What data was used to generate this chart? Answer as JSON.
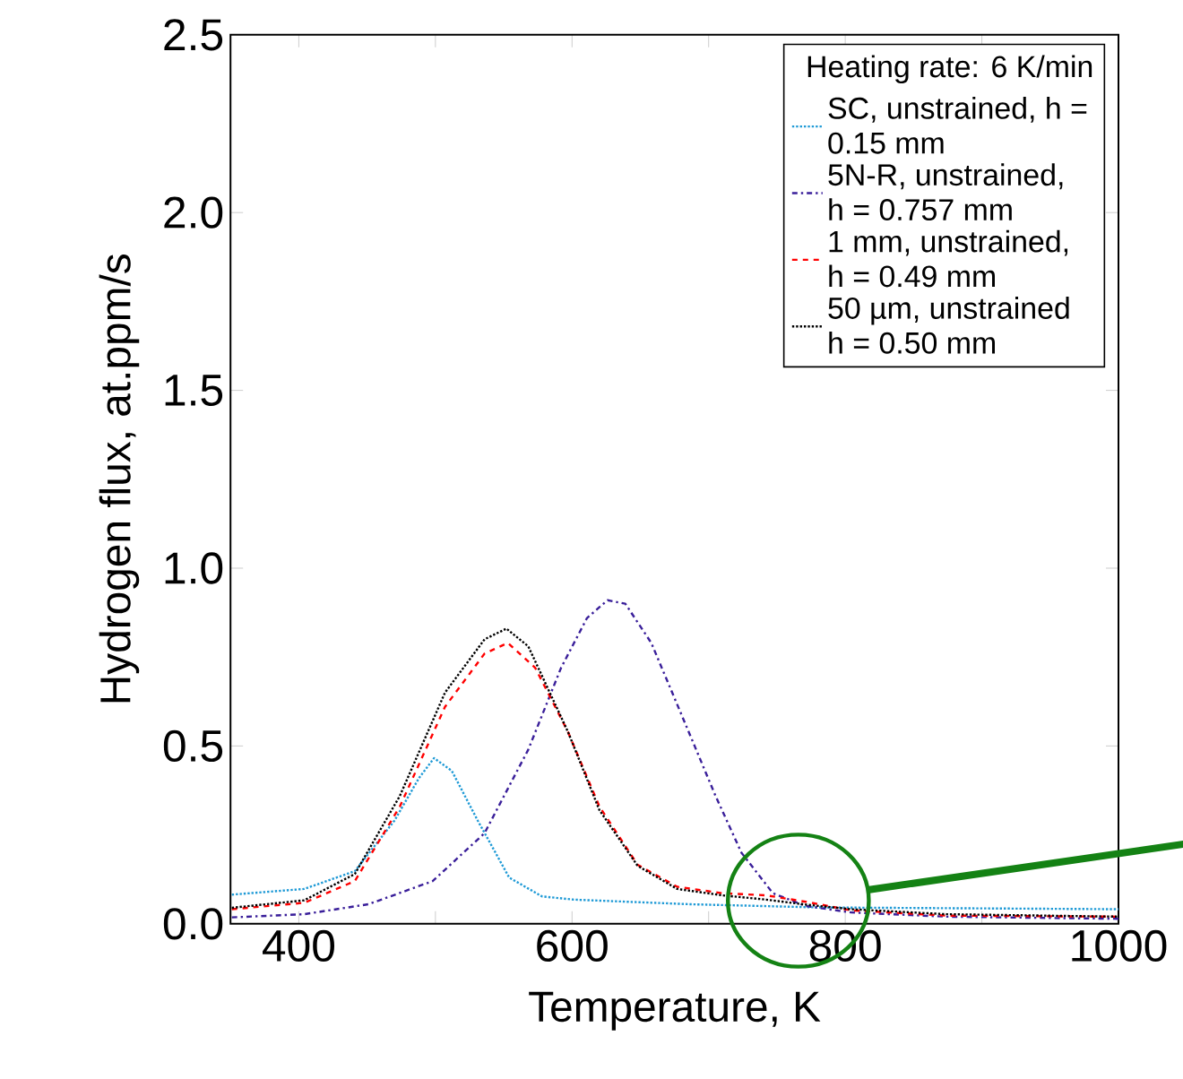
{
  "chart_data": {
    "type": "line",
    "xlabel": "Temperature, K",
    "ylabel": "Hydrogen flux, at.ppm/s",
    "legend_title": "Heating rate: 6 K/min",
    "legend": "top right",
    "xlim": [
      350,
      1000
    ],
    "ylim": [
      0,
      2.5
    ],
    "xticks": [
      400,
      {
        "value": 500,
        "label": null
      },
      600,
      {
        "value": 700,
        "label": null
      },
      800,
      {
        "value": 900,
        "label": null
      },
      1000
    ],
    "yticks": [
      {
        "value": 0,
        "label": "0.0"
      },
      0.5,
      {
        "value": 1,
        "label": "1.0"
      },
      1.5,
      {
        "value": 2,
        "label": "2.0"
      },
      2.5
    ],
    "series": [
      {
        "name": "SC, unstrained, h = 0.15 mm",
        "color": "#1f9ad6",
        "line_style": "dotted",
        "x": [
          351,
          404,
          441,
          470,
          488,
          499,
          512,
          531,
          554,
          578,
          601,
          686,
          780,
          1000
        ],
        "values": [
          0.082,
          0.098,
          0.148,
          0.29,
          0.41,
          0.466,
          0.43,
          0.29,
          0.13,
          0.077,
          0.068,
          0.055,
          0.046,
          0.041
        ]
      },
      {
        "name": "5N-R, unstrained, h = 0.757 mm",
        "color": "#3a1f9a",
        "line_style": "dashdot",
        "x": [
          351,
          404,
          451,
          498,
          536,
          568,
          592,
          611,
          626,
          639,
          658,
          681,
          705,
          724,
          747,
          771,
          804,
          874,
          1000
        ],
        "values": [
          0.018,
          0.027,
          0.055,
          0.12,
          0.255,
          0.49,
          0.72,
          0.86,
          0.91,
          0.9,
          0.79,
          0.58,
          0.36,
          0.2,
          0.086,
          0.05,
          0.032,
          0.02,
          0.014
        ]
      },
      {
        "name": "1 mm, unstrained, h = 0.49 mm",
        "color": "#ff0000",
        "line_style": "dashed",
        "x": [
          351,
          404,
          441,
          474,
          507,
          536,
          553,
          573,
          597,
          620,
          648,
          677,
          710,
          742,
          771,
          804,
          874,
          1000
        ],
        "values": [
          0.041,
          0.059,
          0.12,
          0.33,
          0.61,
          0.76,
          0.79,
          0.72,
          0.54,
          0.33,
          0.166,
          0.104,
          0.086,
          0.08,
          0.062,
          0.038,
          0.023,
          0.02
        ]
      },
      {
        "name": "50 µm, unstrained h = 0.50 mm",
        "color": "#000000",
        "line_style": "dotted",
        "x": [
          351,
          404,
          441,
          474,
          507,
          536,
          552,
          568,
          597,
          620,
          648,
          677,
          710,
          742,
          771,
          804,
          874,
          1000
        ],
        "values": [
          0.045,
          0.066,
          0.14,
          0.36,
          0.65,
          0.8,
          0.83,
          0.78,
          0.54,
          0.32,
          0.163,
          0.098,
          0.08,
          0.068,
          0.054,
          0.041,
          0.027,
          0.02
        ]
      }
    ]
  }
}
